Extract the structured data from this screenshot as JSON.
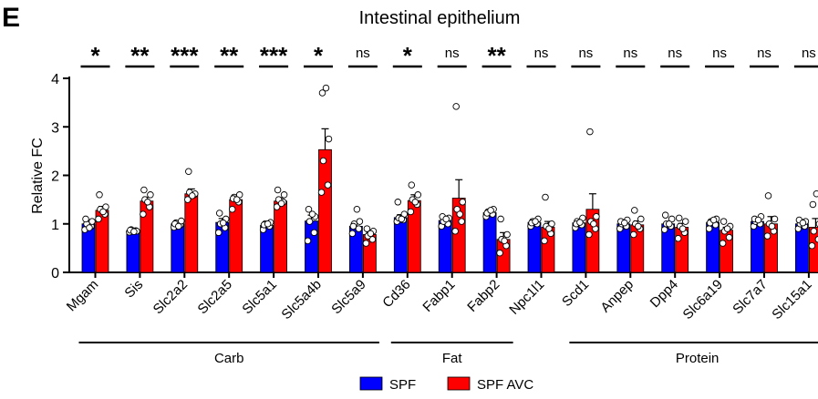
{
  "panel_letter": "E",
  "chart_data": {
    "type": "bar",
    "title": "Intestinal epithelium",
    "xlabel": "",
    "ylabel": "Relative FC",
    "ylim": [
      0,
      4
    ],
    "yticks": [
      0,
      1,
      2,
      3,
      4
    ],
    "categories": [
      "Mgam",
      "Sis",
      "Slc2a2",
      "Slc2a5",
      "Slc5a1",
      "Slc5a4b",
      "Slc5a9",
      "Cd36",
      "Fabp1",
      "Fabp2",
      "Npc1l1",
      "Scd1",
      "Anpep",
      "Dpp4",
      "Slc6a19",
      "Slc7a7",
      "Slc15a1"
    ],
    "series": [
      {
        "name": "SPF",
        "color": "#0000ff",
        "values": [
          1.0,
          0.86,
          1.0,
          1.03,
          0.97,
          1.06,
          0.95,
          1.13,
          1.07,
          1.23,
          1.03,
          1.02,
          1.0,
          1.0,
          1.03,
          1.05,
          1.0
        ],
        "errors": [
          0.05,
          0.02,
          0.04,
          0.08,
          0.04,
          0.12,
          0.07,
          0.06,
          0.05,
          0.04,
          0.04,
          0.04,
          0.04,
          0.05,
          0.04,
          0.04,
          0.04
        ],
        "points": [
          [
            0.88,
            0.95,
            1.0,
            1.05,
            1.1,
            0.92
          ],
          [
            0.83,
            0.86,
            0.88,
            0.85,
            0.87,
            0.84
          ],
          [
            0.93,
            0.98,
            1.02,
            1.06,
            1.0,
            0.95
          ],
          [
            0.82,
            0.92,
            1.0,
            1.1,
            1.22,
            1.02
          ],
          [
            0.88,
            0.95,
            1.0,
            1.03,
            0.98,
            1.0
          ],
          [
            0.65,
            0.82,
            1.05,
            1.15,
            1.3,
            1.2
          ],
          [
            0.8,
            0.9,
            1.0,
            1.05,
            0.95,
            1.3
          ],
          [
            1.05,
            1.08,
            1.12,
            1.2,
            1.45,
            1.1
          ],
          [
            0.95,
            1.0,
            1.05,
            1.12,
            1.15,
            1.1
          ],
          [
            1.15,
            1.2,
            1.25,
            1.3,
            1.22,
            1.28
          ],
          [
            0.95,
            1.0,
            1.05,
            1.1,
            1.02,
            1.05
          ],
          [
            0.92,
            0.98,
            1.05,
            1.12,
            1.0,
            1.03
          ],
          [
            0.9,
            0.95,
            1.0,
            1.08,
            1.05,
            1.02
          ],
          [
            0.88,
            0.95,
            1.0,
            1.1,
            1.18,
            1.0
          ],
          [
            0.9,
            0.98,
            1.05,
            1.1,
            1.02,
            1.08
          ],
          [
            0.95,
            1.0,
            1.05,
            1.15,
            1.1,
            1.08
          ],
          [
            0.9,
            0.95,
            1.0,
            1.05,
            1.08,
            1.02
          ]
        ]
      },
      {
        "name": "SPF AVC",
        "color": "#ff0000",
        "values": [
          1.28,
          1.47,
          1.62,
          1.5,
          1.47,
          2.53,
          0.78,
          1.48,
          1.53,
          0.68,
          0.93,
          1.3,
          0.98,
          0.93,
          0.87,
          1.0,
          0.93
        ],
        "errors": [
          0.08,
          0.08,
          0.1,
          0.07,
          0.07,
          0.43,
          0.05,
          0.12,
          0.38,
          0.14,
          0.12,
          0.32,
          0.08,
          0.08,
          0.06,
          0.15,
          0.18
        ],
        "points": [
          [
            1.1,
            1.2,
            1.3,
            1.35,
            1.6,
            1.25
          ],
          [
            1.2,
            1.35,
            1.5,
            1.6,
            1.7,
            1.45
          ],
          [
            1.5,
            1.6,
            1.65,
            1.62,
            2.08,
            1.58
          ],
          [
            1.3,
            1.45,
            1.55,
            1.6,
            1.52,
            1.5
          ],
          [
            1.35,
            1.45,
            1.5,
            1.6,
            1.7,
            1.42
          ],
          [
            1.65,
            1.8,
            2.3,
            2.75,
            3.7,
            3.8
          ],
          [
            0.6,
            0.68,
            0.75,
            0.85,
            0.9,
            0.8
          ],
          [
            1.25,
            1.4,
            1.5,
            1.6,
            1.8,
            1.45
          ],
          [
            0.85,
            1.05,
            1.3,
            1.45,
            3.42,
            1.2
          ],
          [
            0.4,
            0.55,
            0.68,
            0.78,
            1.1,
            0.65
          ],
          [
            0.65,
            0.8,
            0.95,
            1.0,
            1.55,
            0.9
          ],
          [
            0.78,
            0.9,
            1.05,
            1.15,
            2.9,
            1.0
          ],
          [
            0.78,
            0.9,
            1.0,
            1.1,
            1.28,
            0.95
          ],
          [
            0.7,
            0.82,
            0.95,
            1.05,
            1.12,
            0.9
          ],
          [
            0.6,
            0.72,
            0.85,
            0.95,
            1.05,
            0.9
          ],
          [
            0.75,
            0.85,
            1.0,
            1.1,
            1.58,
            0.95
          ],
          [
            0.55,
            0.68,
            0.85,
            1.0,
            1.4,
            1.62
          ]
        ]
      }
    ],
    "significance": [
      "*",
      "**",
      "***",
      "**",
      "***",
      "*",
      "ns",
      "*",
      "ns",
      "**",
      "ns",
      "ns",
      "ns",
      "ns",
      "ns",
      "ns",
      "ns"
    ],
    "groups": [
      {
        "label": "Carb",
        "start": 0,
        "end": 6
      },
      {
        "label": "Fat",
        "start": 7,
        "end": 9
      },
      {
        "label": "Protein",
        "start": 11,
        "end": 16
      }
    ],
    "legend": {
      "position": "bottom-center",
      "entries": [
        "SPF",
        "SPF AVC"
      ]
    }
  }
}
